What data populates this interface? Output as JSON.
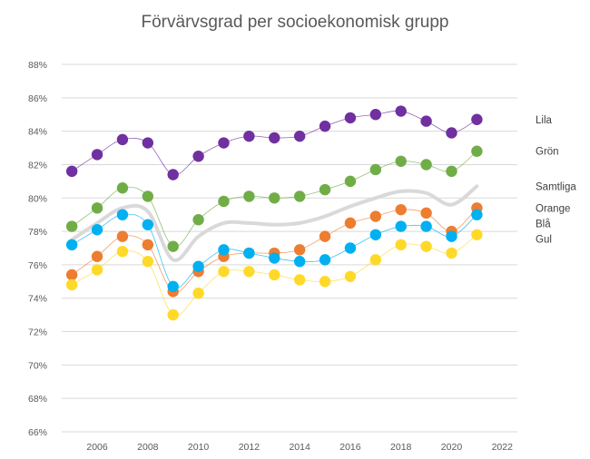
{
  "chart_data": {
    "type": "line",
    "title": "Förvärvsgrad per socioekonomisk grupp",
    "xlabel": "",
    "ylabel": "",
    "x_ticks": [
      "2006",
      "2008",
      "2010",
      "2012",
      "2014",
      "2016",
      "2018",
      "2020",
      "2022"
    ],
    "y_ticks": [
      "66%",
      "68%",
      "70%",
      "72%",
      "74%",
      "76%",
      "78%",
      "80%",
      "82%",
      "84%",
      "86%",
      "88%"
    ],
    "xlim": [
      2004.6,
      2022.6
    ],
    "ylim": [
      66,
      88
    ],
    "grid": true,
    "legend": "right, labels at series end",
    "x": [
      2005,
      2006,
      2007,
      2008,
      2009,
      2010,
      2011,
      2012,
      2013,
      2014,
      2015,
      2016,
      2017,
      2018,
      2019,
      2020,
      2021
    ],
    "series": [
      {
        "name": "Lila",
        "color": "#7030A0",
        "style": "markers",
        "values": [
          81.6,
          82.6,
          83.5,
          83.3,
          81.4,
          82.5,
          83.3,
          83.7,
          83.6,
          83.7,
          84.3,
          84.8,
          85.0,
          85.2,
          84.6,
          83.9,
          84.7
        ]
      },
      {
        "name": "Grön",
        "color": "#70AD47",
        "style": "markers",
        "values": [
          78.3,
          79.4,
          80.6,
          80.1,
          77.1,
          78.7,
          79.8,
          80.1,
          80.0,
          80.1,
          80.5,
          81.0,
          81.7,
          82.2,
          82.0,
          81.6,
          82.8
        ]
      },
      {
        "name": "Samtliga",
        "color": "#D9D9D9",
        "style": "thick-line",
        "values": [
          77.5,
          78.5,
          79.4,
          79.2,
          76.3,
          77.7,
          78.5,
          78.5,
          78.4,
          78.5,
          78.9,
          79.5,
          80.0,
          80.4,
          80.3,
          79.6,
          80.7
        ]
      },
      {
        "name": "Orange",
        "color": "#ED7D31",
        "style": "markers",
        "values": [
          75.4,
          76.5,
          77.7,
          77.2,
          74.4,
          75.6,
          76.5,
          76.7,
          76.7,
          76.9,
          77.7,
          78.5,
          78.9,
          79.3,
          79.1,
          78.0,
          79.4
        ]
      },
      {
        "name": "Blå",
        "color": "#00B0F0",
        "style": "markers",
        "values": [
          77.2,
          78.1,
          79.0,
          78.4,
          74.7,
          75.9,
          76.9,
          76.7,
          76.4,
          76.2,
          76.3,
          77.0,
          77.8,
          78.3,
          78.3,
          77.7,
          79.0
        ]
      },
      {
        "name": "Gul",
        "color": "#FFD929",
        "style": "markers",
        "values": [
          74.8,
          75.7,
          76.8,
          76.2,
          73.0,
          74.3,
          75.6,
          75.6,
          75.4,
          75.1,
          75.0,
          75.3,
          76.3,
          77.2,
          77.1,
          76.7,
          77.8
        ]
      }
    ],
    "legend_order": [
      "Lila",
      "Grön",
      "Samtliga",
      "Orange",
      "Blå",
      "Gul"
    ]
  }
}
